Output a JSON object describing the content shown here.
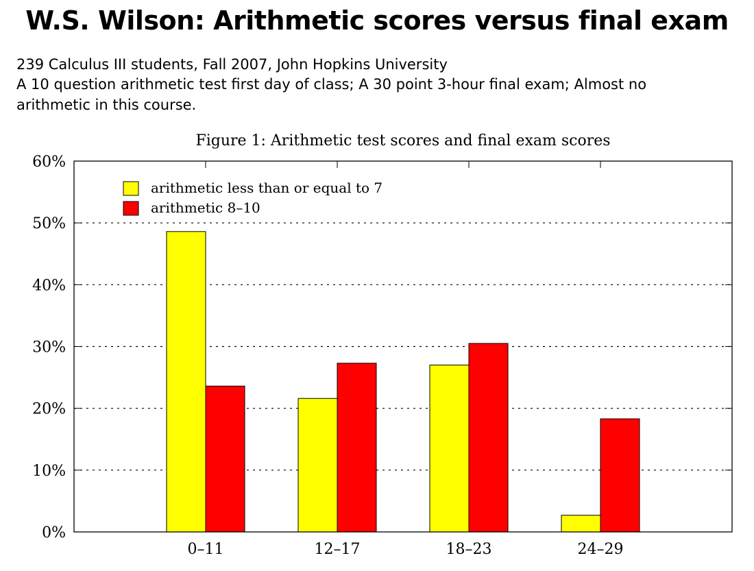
{
  "slide": {
    "title": "W.S. Wilson: Arithmetic scores versus final exam",
    "lines": [
      "239 Calculus III students, Fall 2007, John Hopkins University",
      "A 10 question arithmetic test first day of class; A 30 point 3-hour final exam; Almost no",
      "arithmetic in this course."
    ]
  },
  "chart_data": {
    "type": "bar",
    "title": "Figure 1:  Arithmetic test scores and final exam scores",
    "categories": [
      "0–11",
      "12–17",
      "18–23",
      "24–29"
    ],
    "series": [
      {
        "name": "arithmetic less than or equal to 7",
        "color": "#ffff00",
        "values": [
          48.6,
          21.6,
          27.0,
          2.7
        ]
      },
      {
        "name": "arithmetic 8–10",
        "color": "#ff0000",
        "values": [
          23.6,
          27.3,
          30.5,
          18.3
        ]
      }
    ],
    "ylim": [
      0,
      60
    ],
    "yticks": [
      0,
      10,
      20,
      30,
      40,
      50,
      60
    ],
    "ytick_labels": [
      "0%",
      "10%",
      "20%",
      "30%",
      "40%",
      "50%",
      "60%"
    ],
    "grid": "dotted horizontal",
    "legend": "top-left",
    "xlabel": "",
    "ylabel": ""
  }
}
